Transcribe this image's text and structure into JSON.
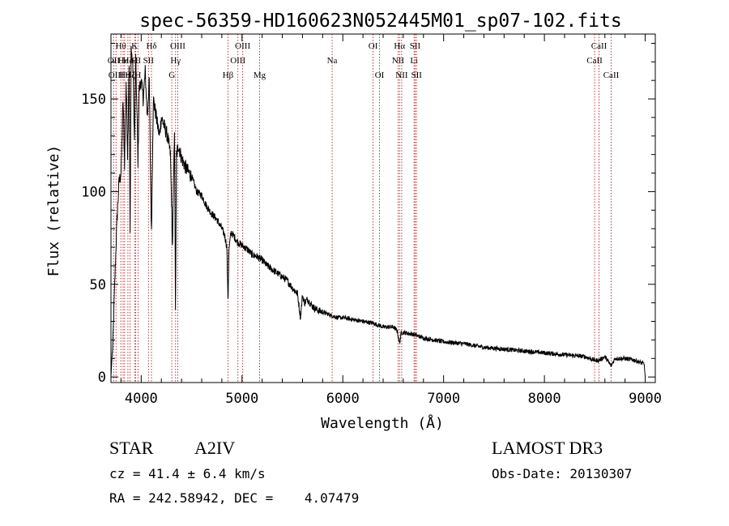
{
  "chart_data": {
    "type": "line",
    "title": "spec-56359-HD160623N052445M01_sp07-102.fits",
    "xlabel": "Wavelength (Å)",
    "ylabel": "Flux (relative)",
    "xlim": [
      3700,
      9100
    ],
    "ylim": [
      -3,
      185
    ],
    "xticks": [
      4000,
      5000,
      6000,
      7000,
      8000,
      9000
    ],
    "xtick_labels": [
      "4000",
      "5000",
      "6000",
      "7000",
      "8000",
      "9000"
    ],
    "yticks": [
      0,
      50,
      100,
      150
    ],
    "ytick_labels": [
      "0",
      "50",
      "100",
      "150"
    ],
    "grid": false,
    "series": [
      {
        "name": "spectrum",
        "x": [
          3700,
          3720,
          3740,
          3760,
          3780,
          3800,
          3820,
          3835,
          3850,
          3865,
          3880,
          3890,
          3900,
          3920,
          3933,
          3945,
          3955,
          3968,
          3980,
          4000,
          4020,
          4040,
          4060,
          4080,
          4101,
          4120,
          4150,
          4180,
          4200,
          4230,
          4260,
          4290,
          4310,
          4330,
          4340,
          4350,
          4370,
          4400,
          4450,
          4500,
          4550,
          4600,
          4650,
          4700,
          4750,
          4800,
          4830,
          4850,
          4861,
          4870,
          4890,
          4920,
          4950,
          5000,
          5050,
          5100,
          5150,
          5200,
          5250,
          5300,
          5350,
          5400,
          5450,
          5500,
          5550,
          5580,
          5600,
          5620,
          5650,
          5700,
          5750,
          5800,
          5850,
          5900,
          5950,
          6000,
          6100,
          6200,
          6300,
          6400,
          6500,
          6540,
          6563,
          6580,
          6600,
          6700,
          6800,
          6900,
          7000,
          7200,
          7400,
          7600,
          7800,
          8000,
          8200,
          8400,
          8498,
          8542,
          8600,
          8662,
          8700,
          8800,
          8900,
          8990,
          9000
        ],
        "y": [
          0,
          20,
          55,
          85,
          105,
          110,
          150,
          115,
          160,
          120,
          170,
          75,
          178,
          165,
          125,
          172,
          150,
          115,
          155,
          160,
          150,
          165,
          140,
          160,
          75,
          150,
          140,
          130,
          140,
          135,
          130,
          120,
          70,
          135,
          38,
          120,
          125,
          118,
          112,
          108,
          100,
          98,
          92,
          88,
          85,
          80,
          76,
          70,
          40,
          68,
          78,
          76,
          73,
          71,
          69,
          66,
          65,
          63,
          60,
          58,
          56,
          54,
          52,
          48,
          45,
          32,
          44,
          40,
          42,
          38,
          36,
          35,
          34,
          33,
          32,
          32,
          31,
          30,
          29,
          27,
          27,
          25,
          18,
          24,
          24,
          23,
          21,
          20,
          19,
          18,
          16,
          15,
          14,
          13,
          12,
          11,
          9,
          9,
          11,
          6,
          10,
          10,
          9,
          7,
          0
        ]
      }
    ],
    "line_markers": [
      {
        "wavelength": 3727,
        "label": "OII",
        "row": 1
      },
      {
        "wavelength": 3750,
        "label": "OIII",
        "row": 2
      },
      {
        "wavelength": 3798,
        "label": "Hθ",
        "row": 0
      },
      {
        "wavelength": 3820,
        "label": "He",
        "row": 1
      },
      {
        "wavelength": 3835,
        "label": "Hη",
        "row": 2
      },
      {
        "wavelength": 3868,
        "label": "He",
        "row": 1
      },
      {
        "wavelength": 3889,
        "label": "Hζ",
        "row": 2
      },
      {
        "wavelength": 3934,
        "label": "K",
        "row": 0
      },
      {
        "wavelength": 3945,
        "label": "SII",
        "row": 1
      },
      {
        "wavelength": 3968,
        "label": "H",
        "row": 2
      },
      {
        "wavelength": 4072,
        "label": "SII",
        "row": 1
      },
      {
        "wavelength": 4102,
        "label": "Hδ",
        "row": 0
      },
      {
        "wavelength": 4304,
        "label": "G",
        "row": 2
      },
      {
        "wavelength": 4341,
        "label": "Hγ",
        "row": 1
      },
      {
        "wavelength": 4363,
        "label": "OIII",
        "row": 0
      },
      {
        "wavelength": 4861,
        "label": "Hβ",
        "row": 2
      },
      {
        "wavelength": 4959,
        "label": "OIII",
        "row": 1
      },
      {
        "wavelength": 5007,
        "label": "OIII",
        "row": 0
      },
      {
        "wavelength": 5175,
        "label": "Mg",
        "row": 2
      },
      {
        "wavelength": 5894,
        "label": "Na",
        "row": 1
      },
      {
        "wavelength": 6300,
        "label": "OI",
        "row": 0
      },
      {
        "wavelength": 6364,
        "label": "OI",
        "row": 2
      },
      {
        "wavelength": 6548,
        "label": "NII",
        "row": 1
      },
      {
        "wavelength": 6563,
        "label": "Hα",
        "row": 0
      },
      {
        "wavelength": 6584,
        "label": "NII",
        "row": 2
      },
      {
        "wavelength": 6707,
        "label": "Li",
        "row": 1
      },
      {
        "wavelength": 6717,
        "label": "SII",
        "row": 0
      },
      {
        "wavelength": 6731,
        "label": "SII",
        "row": 2
      },
      {
        "wavelength": 8498,
        "label": "CaII",
        "row": 1
      },
      {
        "wavelength": 8542,
        "label": "CaII",
        "row": 0
      },
      {
        "wavelength": 8662,
        "label": "CaII",
        "row": 2
      }
    ]
  },
  "info": {
    "object_class": "STAR",
    "subclass": "A2IV",
    "survey": "LAMOST  DR3",
    "cz": "cz = 41.4 ± 6.4 km/s",
    "obs_date": "Obs-Date: 20130307",
    "coords": "RA = 242.58942, DEC =    4.07479"
  },
  "colors": {
    "line": "#000000",
    "marker": "#b22222",
    "text": "#000000"
  }
}
